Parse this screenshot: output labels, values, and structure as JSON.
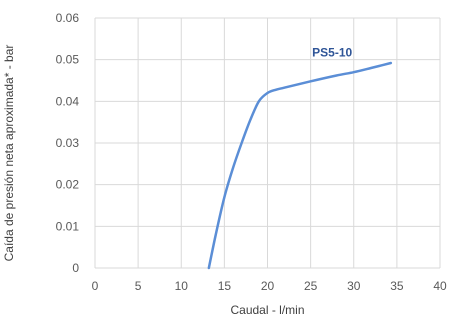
{
  "chart_data": {
    "type": "line",
    "title": "",
    "xlabel": "Caudal - l/min",
    "ylabel": "Caída de presión neta aproximada* - bar",
    "xlim": [
      0,
      40
    ],
    "ylim": [
      0,
      0.06
    ],
    "x_ticks": [
      "0",
      "5",
      "10",
      "15",
      "20",
      "25",
      "30",
      "35",
      "40"
    ],
    "y_ticks": [
      "0",
      "0.01",
      "0.02",
      "0.03",
      "0.04",
      "0.05",
      "0.06"
    ],
    "grid": true,
    "colors": {
      "series": "#5b8ed6",
      "label": "#2f5597",
      "grid": "#d9d9d9",
      "text": "#595959"
    },
    "series": [
      {
        "name": "PS5-10",
        "x": [
          13.2,
          14.0,
          15.0,
          16.0,
          17.0,
          18.0,
          19.0,
          20.0,
          21.0,
          22.0,
          25.0,
          28.0,
          30.0,
          32.0,
          34.3
        ],
        "y": [
          0.0,
          0.008,
          0.017,
          0.024,
          0.03,
          0.0355,
          0.04,
          0.042,
          0.0428,
          0.0433,
          0.0448,
          0.0462,
          0.047,
          0.048,
          0.0492
        ]
      }
    ],
    "annotations": [
      {
        "text": "PS5-10",
        "x": 27.5,
        "y": 0.0508
      }
    ]
  }
}
